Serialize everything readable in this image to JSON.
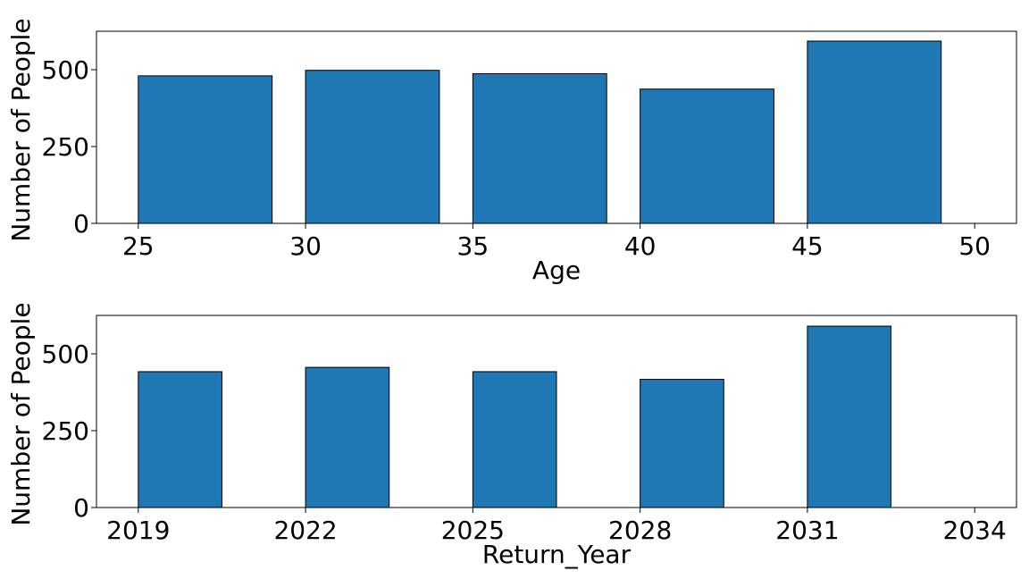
{
  "chart_data": [
    {
      "type": "bar",
      "xlabel": "Age",
      "ylabel": "Number of People",
      "xticks": [
        25,
        30,
        35,
        40,
        45,
        50
      ],
      "yticks": [
        0,
        250,
        500
      ],
      "xlim": [
        23.75,
        51.25
      ],
      "ylim": [
        0,
        625
      ],
      "bars": [
        {
          "x_start": 25,
          "x_end": 29,
          "value": 480
        },
        {
          "x_start": 30,
          "x_end": 34,
          "value": 498
        },
        {
          "x_start": 35,
          "x_end": 39,
          "value": 487
        },
        {
          "x_start": 40,
          "x_end": 44,
          "value": 437
        },
        {
          "x_start": 45,
          "x_end": 49,
          "value": 593
        }
      ],
      "bar_color": "#1f77b4",
      "edge_color": "#000000",
      "grid": false
    },
    {
      "type": "bar",
      "xlabel": "Return_Year",
      "ylabel": "Number of People",
      "xticks": [
        2019,
        2022,
        2025,
        2028,
        2031,
        2034
      ],
      "yticks": [
        0,
        250,
        500
      ],
      "xlim": [
        2018.25,
        2034.75
      ],
      "ylim": [
        0,
        625
      ],
      "bars": [
        {
          "x_start": 2019,
          "x_end": 2020.5,
          "value": 442
        },
        {
          "x_start": 2022,
          "x_end": 2023.5,
          "value": 456
        },
        {
          "x_start": 2025,
          "x_end": 2026.5,
          "value": 442
        },
        {
          "x_start": 2028,
          "x_end": 2029.5,
          "value": 417
        },
        {
          "x_start": 2031,
          "x_end": 2032.5,
          "value": 590
        }
      ],
      "bar_color": "#1f77b4",
      "edge_color": "#000000",
      "grid": false
    }
  ]
}
